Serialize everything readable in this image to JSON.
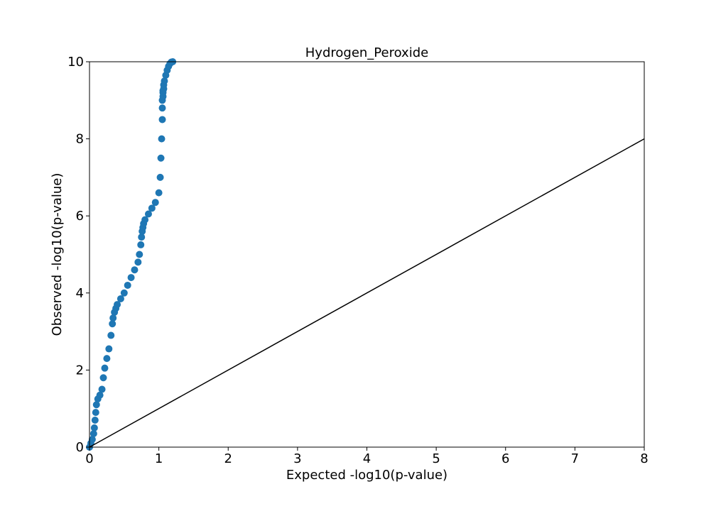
{
  "chart_data": {
    "type": "scatter",
    "title": "Hydrogen_Peroxide",
    "xlabel": "Expected -log10(p-value)",
    "ylabel": "Observed -log10(p-value)",
    "xlim": [
      0,
      8
    ],
    "ylim": [
      0,
      10
    ],
    "xticks": [
      "0",
      "1",
      "2",
      "3",
      "4",
      "5",
      "6",
      "7",
      "8"
    ],
    "yticks": [
      "0",
      "2",
      "4",
      "6",
      "8",
      "10"
    ],
    "grid": false,
    "legend": "none",
    "colors": {
      "points": "#1f77b4",
      "reference_line": "#000000"
    },
    "reference_line": {
      "x": [
        0,
        8
      ],
      "y": [
        0,
        8
      ]
    },
    "series": [
      {
        "x": [
          0.0,
          0.02,
          0.04,
          0.06,
          0.07,
          0.08,
          0.09,
          0.1,
          0.12,
          0.15,
          0.18,
          0.2,
          0.22,
          0.25,
          0.28,
          0.31,
          0.33,
          0.34,
          0.36,
          0.38,
          0.4,
          0.45,
          0.5,
          0.55,
          0.6,
          0.65,
          0.7,
          0.72,
          0.74,
          0.75,
          0.76,
          0.77,
          0.78,
          0.8,
          0.85,
          0.9,
          0.95,
          1.0,
          1.02,
          1.03,
          1.04,
          1.05,
          1.05,
          1.05,
          1.06,
          1.06,
          1.06,
          1.07,
          1.07,
          1.08,
          1.1,
          1.12,
          1.14,
          1.16,
          1.18,
          1.2
        ],
        "y": [
          0.0,
          0.1,
          0.2,
          0.35,
          0.5,
          0.7,
          0.9,
          1.1,
          1.25,
          1.35,
          1.5,
          1.8,
          2.05,
          2.3,
          2.55,
          2.9,
          3.2,
          3.35,
          3.5,
          3.6,
          3.7,
          3.85,
          4.0,
          4.2,
          4.4,
          4.6,
          4.8,
          5.0,
          5.25,
          5.45,
          5.6,
          5.7,
          5.8,
          5.9,
          6.05,
          6.2,
          6.35,
          6.6,
          7.0,
          7.5,
          8.0,
          8.5,
          8.8,
          9.0,
          9.1,
          9.2,
          9.25,
          9.3,
          9.4,
          9.5,
          9.65,
          9.78,
          9.88,
          9.95,
          9.99,
          10.0
        ]
      }
    ]
  }
}
